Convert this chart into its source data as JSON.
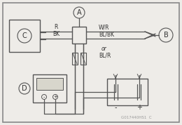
{
  "bg_color": "#eeece8",
  "border_color": "#666666",
  "line_color": "#555555",
  "text_color": "#333333",
  "fig_width": 2.6,
  "fig_height": 1.78,
  "dpi": 100,
  "watermark": "G017440HS1  C",
  "label_A": "A",
  "label_B": "B",
  "label_C": "C",
  "label_D": "D",
  "wire_R": "R",
  "wire_BK": "BK",
  "wire_WR": "W/R",
  "wire_BLBK": "BL/BK",
  "wire_or": "or",
  "wire_BLR": "BL/R"
}
